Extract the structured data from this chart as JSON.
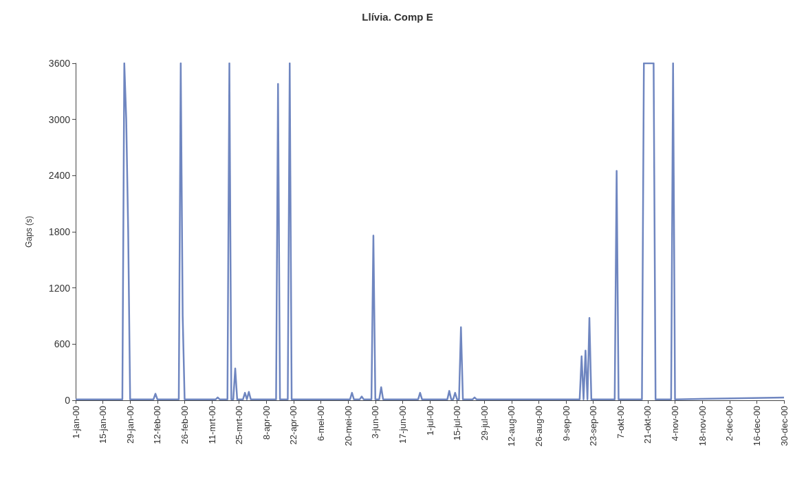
{
  "chart_data": {
    "type": "line",
    "title": "Llívia. Comp E",
    "ylabel": "Gaps (s)",
    "x": [
      "2000-01-01",
      "2000-01-25",
      "2000-01-26",
      "2000-01-27",
      "2000-01-28",
      "2000-01-29",
      "2000-02-10",
      "2000-02-11",
      "2000-02-12",
      "2000-02-23",
      "2000-02-24",
      "2000-02-25",
      "2000-02-26",
      "2000-03-13",
      "2000-03-14",
      "2000-03-15",
      "2000-03-19",
      "2000-03-20",
      "2000-03-21",
      "2000-03-22",
      "2000-03-23",
      "2000-03-24",
      "2000-03-27",
      "2000-03-28",
      "2000-03-29",
      "2000-03-30",
      "2000-03-31",
      "2000-04-13",
      "2000-04-14",
      "2000-04-15",
      "2000-04-19",
      "2000-04-20",
      "2000-04-21",
      "2000-05-21",
      "2000-05-22",
      "2000-05-23",
      "2000-05-26",
      "2000-05-27",
      "2000-05-28",
      "2000-06-01",
      "2000-06-02",
      "2000-06-03",
      "2000-06-05",
      "2000-06-06",
      "2000-06-07",
      "2000-06-25",
      "2000-06-26",
      "2000-06-27",
      "2000-07-10",
      "2000-07-11",
      "2000-07-12",
      "2000-07-13",
      "2000-07-14",
      "2000-07-15",
      "2000-07-16",
      "2000-07-17",
      "2000-07-18",
      "2000-07-23",
      "2000-07-24",
      "2000-07-25",
      "2000-09-16",
      "2000-09-17",
      "2000-09-18",
      "2000-09-19",
      "2000-09-20",
      "2000-09-21",
      "2000-09-22",
      "2000-10-04",
      "2000-10-05",
      "2000-10-06",
      "2000-10-18",
      "2000-10-19",
      "2000-10-24",
      "2000-10-25",
      "2000-11-02",
      "2000-11-03",
      "2000-11-04",
      "2000-12-30"
    ],
    "series": [
      {
        "color": "#6f86c0",
        "values": [
          10,
          10,
          3600,
          3000,
          1800,
          10,
          10,
          70,
          10,
          10,
          3600,
          900,
          10,
          10,
          30,
          10,
          10,
          3600,
          10,
          10,
          340,
          10,
          10,
          80,
          10,
          90,
          10,
          10,
          3380,
          10,
          10,
          3600,
          10,
          10,
          80,
          10,
          10,
          40,
          10,
          10,
          1760,
          10,
          10,
          140,
          10,
          10,
          80,
          10,
          10,
          100,
          10,
          10,
          80,
          10,
          10,
          780,
          10,
          10,
          30,
          10,
          10,
          470,
          10,
          530,
          10,
          880,
          10,
          10,
          2450,
          10,
          10,
          3600,
          3600,
          10,
          10,
          3600,
          10,
          30
        ]
      }
    ],
    "xlim": [
      "2000-01-01",
      "2000-12-30"
    ],
    "xticks": [
      {
        "value": "2000-01-01",
        "label": "1-jan-00"
      },
      {
        "value": "2000-01-15",
        "label": "15-jan-00"
      },
      {
        "value": "2000-01-29",
        "label": "29-jan-00"
      },
      {
        "value": "2000-02-12",
        "label": "12-feb-00"
      },
      {
        "value": "2000-02-26",
        "label": "26-feb-00"
      },
      {
        "value": "2000-03-11",
        "label": "11-mrt-00"
      },
      {
        "value": "2000-03-25",
        "label": "25-mrt-00"
      },
      {
        "value": "2000-04-08",
        "label": "8-apr-00"
      },
      {
        "value": "2000-04-22",
        "label": "22-apr-00"
      },
      {
        "value": "2000-05-06",
        "label": "6-mei-00"
      },
      {
        "value": "2000-05-20",
        "label": "20-mei-00"
      },
      {
        "value": "2000-06-03",
        "label": "3-jun-00"
      },
      {
        "value": "2000-06-17",
        "label": "17-jun-00"
      },
      {
        "value": "2000-07-01",
        "label": "1-jul-00"
      },
      {
        "value": "2000-07-15",
        "label": "15-jul-00"
      },
      {
        "value": "2000-07-29",
        "label": "29-jul-00"
      },
      {
        "value": "2000-08-12",
        "label": "12-aug-00"
      },
      {
        "value": "2000-08-26",
        "label": "26-aug-00"
      },
      {
        "value": "2000-09-09",
        "label": "9-sep-00"
      },
      {
        "value": "2000-09-23",
        "label": "23-sep-00"
      },
      {
        "value": "2000-10-07",
        "label": "7-okt-00"
      },
      {
        "value": "2000-10-21",
        "label": "21-okt-00"
      },
      {
        "value": "2000-11-04",
        "label": "4-nov-00"
      },
      {
        "value": "2000-11-18",
        "label": "18-nov-00"
      },
      {
        "value": "2000-12-02",
        "label": "2-dec-00"
      },
      {
        "value": "2000-12-16",
        "label": "16-dec-00"
      },
      {
        "value": "2000-12-30",
        "label": "30-dec-00"
      }
    ],
    "ylim": [
      0,
      3600
    ],
    "yticks": [
      0,
      600,
      1200,
      1800,
      2400,
      3000,
      3600
    ],
    "marker": "none",
    "line_style": "solid",
    "grid": false
  }
}
